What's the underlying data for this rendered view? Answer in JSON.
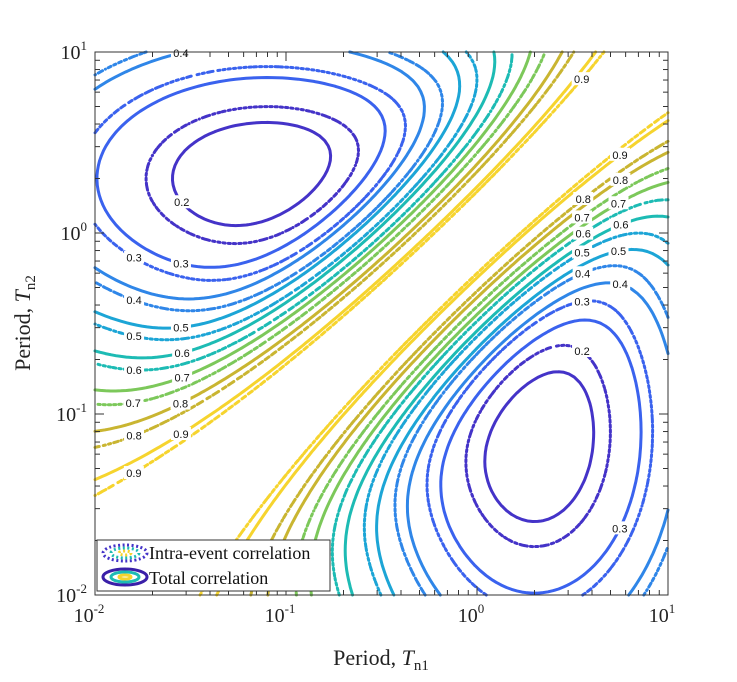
{
  "chart_data": {
    "type": "contour",
    "xlabel": {
      "text": "Period, ",
      "var": "T",
      "sub": "n1"
    },
    "ylabel": {
      "text": "Period, ",
      "var": "T",
      "sub": "n2"
    },
    "x_scale": "log",
    "y_scale": "log",
    "xlim": [
      0.01,
      10
    ],
    "ylim": [
      0.01,
      10
    ],
    "x_ticks": [
      {
        "base": "10",
        "exp": "-2"
      },
      {
        "base": "10",
        "exp": "-1"
      },
      {
        "base": "10",
        "exp": "0"
      },
      {
        "base": "10",
        "exp": "1"
      }
    ],
    "y_ticks": [
      {
        "base": "10",
        "exp": "-2"
      },
      {
        "base": "10",
        "exp": "-1"
      },
      {
        "base": "10",
        "exp": "0"
      },
      {
        "base": "10",
        "exp": "1"
      }
    ],
    "grid": false,
    "levels": [
      0.2,
      0.3,
      0.4,
      0.5,
      0.6,
      0.7,
      0.8,
      0.9
    ],
    "level_colors": {
      "0.2": "#4433c8",
      "0.3": "#3a62ee",
      "0.4": "#2f86e8",
      "0.5": "#1ca5d6",
      "0.6": "#1dbbb4",
      "0.7": "#7cc85a",
      "0.8": "#c9b531",
      "0.9": "#f6d42e"
    },
    "minima": [
      {
        "T1": 0.08,
        "T2": 2.0,
        "value": 0.2
      },
      {
        "T1": 2.0,
        "T2": 0.08,
        "value": 0.2
      }
    ],
    "series": [
      {
        "name": "Intra-event correlation",
        "style": "dotted"
      },
      {
        "name": "Total correlation",
        "style": "solid"
      }
    ],
    "legend_position": "bottom-left"
  }
}
